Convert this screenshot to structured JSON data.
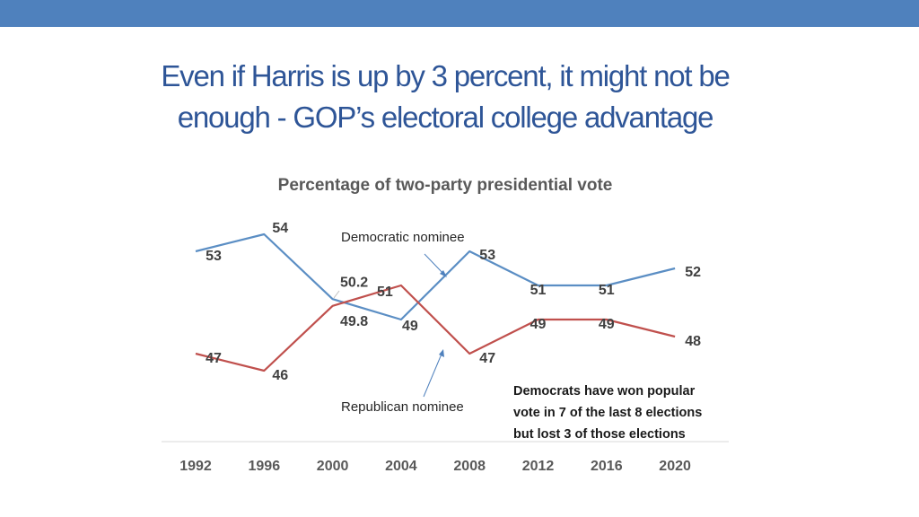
{
  "colors": {
    "header_bar": "#4f81bd",
    "title": "#2e5597",
    "democratic": "#5b8ec4",
    "republican": "#c0504d"
  },
  "slide": {
    "title_line1": "Even if Harris is up by 3 percent, it might not be",
    "title_line2": "enough - GOP’s electoral college advantage"
  },
  "chart_data": {
    "type": "line",
    "title": "Percentage of two-party presidential vote",
    "categories": [
      "1992",
      "1996",
      "2000",
      "2004",
      "2008",
      "2012",
      "2016",
      "2020"
    ],
    "series": [
      {
        "key": "democratic",
        "values": [
          53,
          54,
          50.2,
          49,
          53,
          51,
          51,
          52
        ],
        "labels": [
          "53",
          "54",
          "50.2",
          "49",
          "53",
          "51",
          "51",
          "52"
        ]
      },
      {
        "key": "republican",
        "values": [
          47,
          46,
          49.8,
          51,
          47,
          49,
          49,
          48
        ],
        "labels": [
          "47",
          "46",
          "49.8",
          "51",
          "47",
          "49",
          "49",
          "48"
        ]
      }
    ],
    "ylim": [
      45,
      55
    ],
    "grid": false,
    "legend": "none",
    "annotations": {
      "democratic": "Democratic nominee",
      "republican": "Republican nominee",
      "note": [
        "Democrats have won popular",
        "vote in 7 of the last 8 elections",
        "but lost 3 of those elections"
      ]
    }
  }
}
